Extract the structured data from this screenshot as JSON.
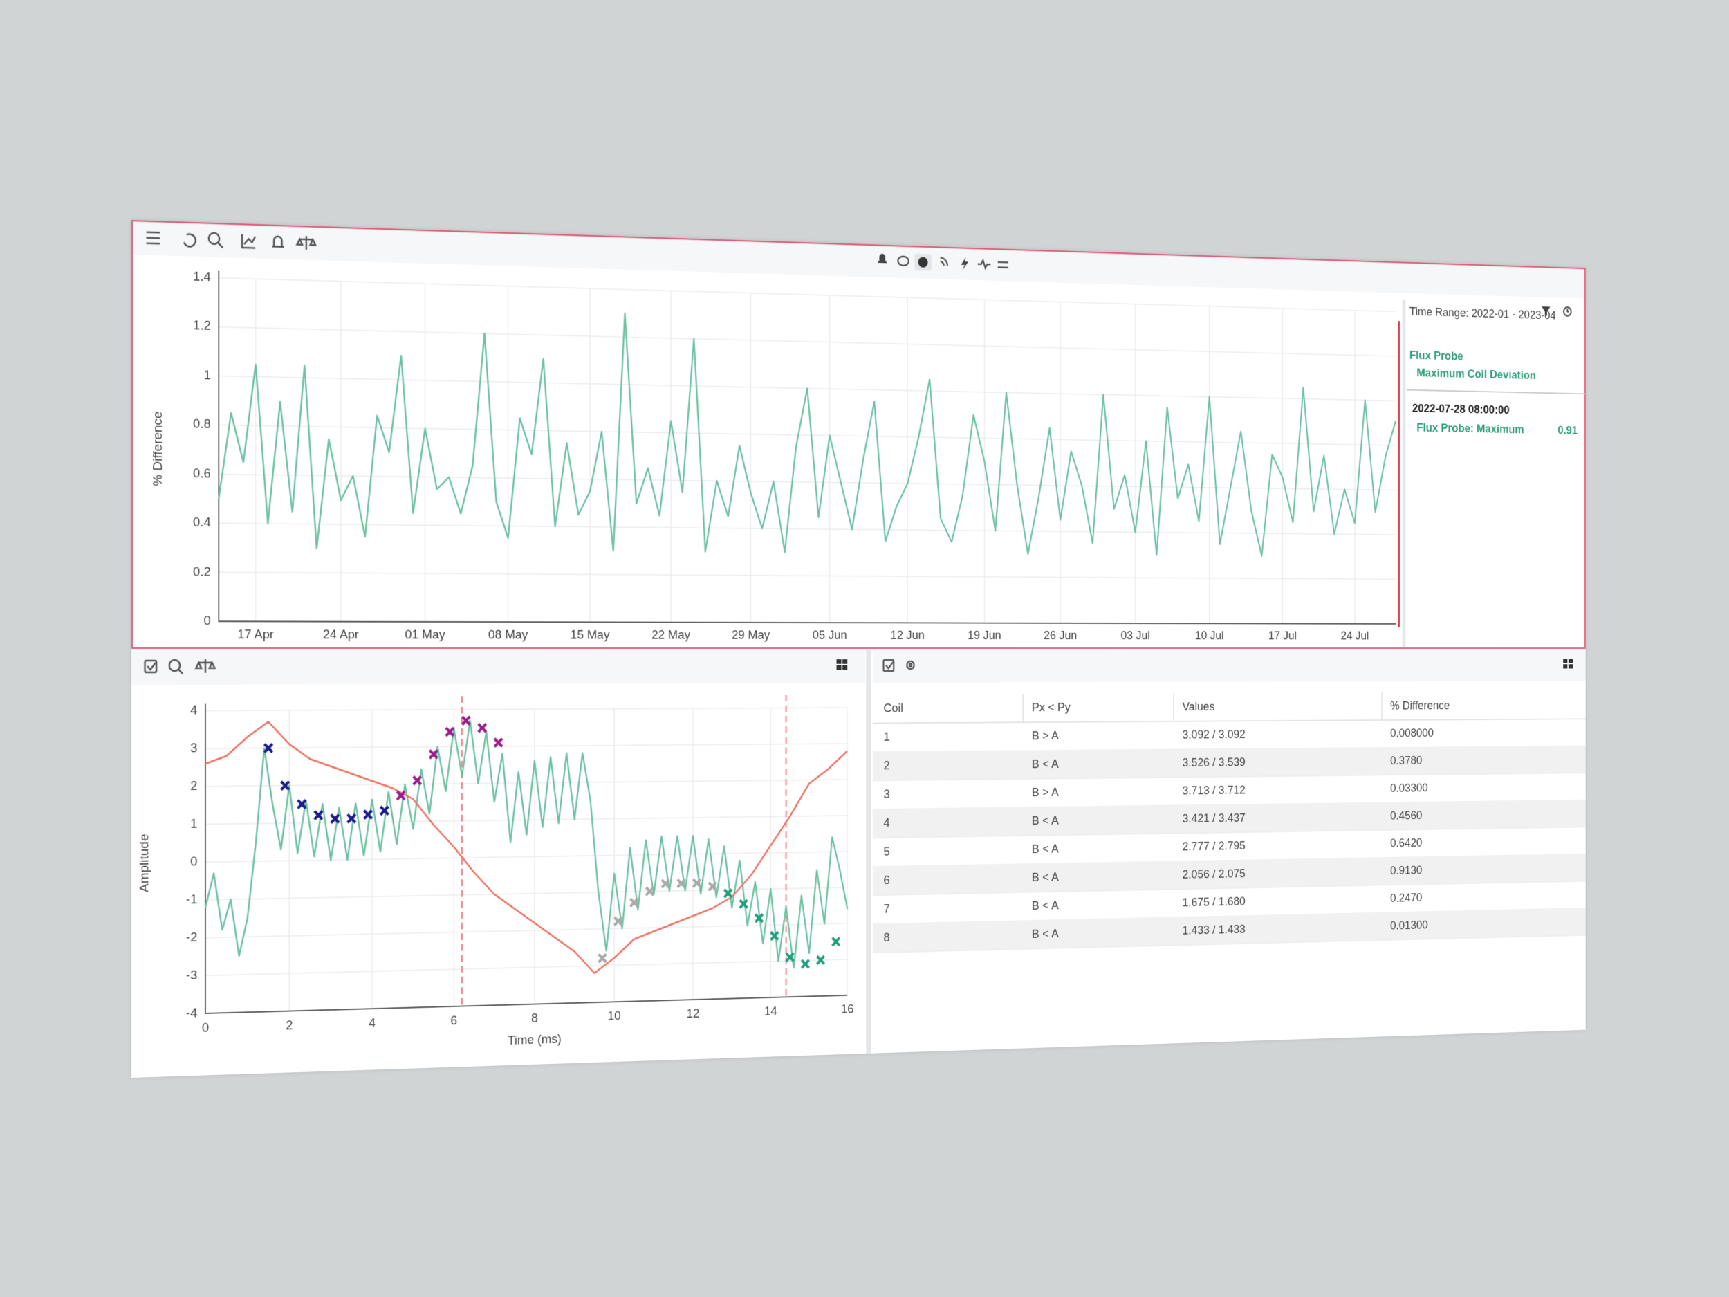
{
  "legend": {
    "time_range": "Time Range: 2022-01 - 2023-04",
    "probe": "Flux Probe",
    "metric": "Maximum Coil Deviation",
    "timestamp": "2022-07-28 08:00:00",
    "reading_label": "Flux Probe: Maximum",
    "reading_value": 0.91
  },
  "chart_data": [
    {
      "type": "line",
      "ylabel": "% Difference",
      "grid": true,
      "xlim": [
        "2022-04-14",
        "2022-07-28"
      ],
      "xticks": [
        {
          "value": "2022-04-17",
          "label": "17 Apr"
        },
        {
          "value": "2022-04-24",
          "label": "24 Apr"
        },
        {
          "value": "2022-05-01",
          "label": "01 May"
        },
        {
          "value": "2022-05-08",
          "label": "08 May"
        },
        {
          "value": "2022-05-15",
          "label": "15 May"
        },
        {
          "value": "2022-05-22",
          "label": "22 May"
        },
        {
          "value": "2022-05-29",
          "label": "29 May"
        },
        {
          "value": "2022-06-05",
          "label": "05 Jun"
        },
        {
          "value": "2022-06-12",
          "label": "12 Jun"
        },
        {
          "value": "2022-06-19",
          "label": "19 Jun"
        },
        {
          "value": "2022-06-26",
          "label": "26 Jun"
        },
        {
          "value": "2022-07-03",
          "label": "03 Jul"
        },
        {
          "value": "2022-07-10",
          "label": "10 Jul"
        },
        {
          "value": "2022-07-17",
          "label": "17 Jul"
        },
        {
          "value": "2022-07-24",
          "label": "24 Jul"
        }
      ],
      "ylim": [
        0,
        1.4
      ],
      "yticks": [
        0,
        0.2,
        0.4,
        0.6,
        0.8,
        1,
        1.2,
        1.4
      ],
      "series": [
        {
          "color": "#6cc2a0",
          "x": [
            "2022-04-14",
            "2022-04-15",
            "2022-04-16",
            "2022-04-17",
            "2022-04-18",
            "2022-04-19",
            "2022-04-20",
            "2022-04-21",
            "2022-04-22",
            "2022-04-23",
            "2022-04-24",
            "2022-04-25",
            "2022-04-26",
            "2022-04-27",
            "2022-04-28",
            "2022-04-29",
            "2022-04-30",
            "2022-05-01",
            "2022-05-02",
            "2022-05-03",
            "2022-05-04",
            "2022-05-05",
            "2022-05-06",
            "2022-05-07",
            "2022-05-08",
            "2022-05-09",
            "2022-05-10",
            "2022-05-11",
            "2022-05-12",
            "2022-05-13",
            "2022-05-14",
            "2022-05-15",
            "2022-05-16",
            "2022-05-17",
            "2022-05-18",
            "2022-05-19",
            "2022-05-20",
            "2022-05-21",
            "2022-05-22",
            "2022-05-23",
            "2022-05-24",
            "2022-05-25",
            "2022-05-26",
            "2022-05-27",
            "2022-05-28",
            "2022-05-29",
            "2022-05-30",
            "2022-05-31",
            "2022-06-01",
            "2022-06-02",
            "2022-06-03",
            "2022-06-04",
            "2022-06-05",
            "2022-06-06",
            "2022-06-07",
            "2022-06-08",
            "2022-06-09",
            "2022-06-10",
            "2022-06-11",
            "2022-06-12",
            "2022-06-13",
            "2022-06-14",
            "2022-06-15",
            "2022-06-16",
            "2022-06-17",
            "2022-06-18",
            "2022-06-19",
            "2022-06-20",
            "2022-06-21",
            "2022-06-22",
            "2022-06-23",
            "2022-06-24",
            "2022-06-25",
            "2022-06-26",
            "2022-06-27",
            "2022-06-28",
            "2022-06-29",
            "2022-06-30",
            "2022-07-01",
            "2022-07-02",
            "2022-07-03",
            "2022-07-04",
            "2022-07-05",
            "2022-07-06",
            "2022-07-07",
            "2022-07-08",
            "2022-07-09",
            "2022-07-10",
            "2022-07-11",
            "2022-07-12",
            "2022-07-13",
            "2022-07-14",
            "2022-07-15",
            "2022-07-16",
            "2022-07-17",
            "2022-07-18",
            "2022-07-19",
            "2022-07-20",
            "2022-07-21",
            "2022-07-22",
            "2022-07-23",
            "2022-07-24",
            "2022-07-25",
            "2022-07-26",
            "2022-07-27",
            "2022-07-28"
          ],
          "values": [
            0.5,
            0.85,
            0.65,
            1.05,
            0.4,
            0.9,
            0.45,
            1.05,
            0.3,
            0.75,
            0.5,
            0.6,
            0.35,
            0.85,
            0.7,
            1.1,
            0.45,
            0.8,
            0.55,
            0.6,
            0.45,
            0.65,
            1.2,
            0.5,
            0.35,
            0.85,
            0.7,
            1.1,
            0.4,
            0.75,
            0.45,
            0.55,
            0.8,
            0.3,
            1.3,
            0.5,
            0.65,
            0.45,
            0.85,
            0.55,
            1.2,
            0.3,
            0.6,
            0.45,
            0.75,
            0.55,
            0.4,
            0.6,
            0.3,
            0.75,
            1.0,
            0.45,
            0.8,
            0.6,
            0.4,
            0.7,
            0.95,
            0.35,
            0.5,
            0.6,
            0.8,
            1.05,
            0.45,
            0.35,
            0.55,
            0.9,
            0.7,
            0.4,
            1.0,
            0.6,
            0.3,
            0.55,
            0.85,
            0.45,
            0.75,
            0.6,
            0.35,
            1.0,
            0.5,
            0.65,
            0.4,
            0.8,
            0.3,
            0.95,
            0.55,
            0.7,
            0.45,
            1.0,
            0.35,
            0.6,
            0.85,
            0.5,
            0.3,
            0.75,
            0.65,
            0.45,
            1.05,
            0.5,
            0.75,
            0.4,
            0.6,
            0.45,
            1.0,
            0.5,
            0.75,
            0.91
          ]
        }
      ]
    },
    {
      "type": "line",
      "xlabel": "Time (ms)",
      "ylabel": "Amplitude",
      "grid": true,
      "xlim": [
        0,
        16
      ],
      "xticks": [
        0,
        2,
        4,
        6,
        8,
        10,
        12,
        14,
        16
      ],
      "ylim": [
        -4,
        4
      ],
      "yticks": [
        -4,
        -3,
        -2,
        -1,
        0,
        1,
        2,
        3,
        4
      ],
      "series": [
        {
          "color": "#6cc2a0",
          "x": [
            0,
            0.2,
            0.4,
            0.6,
            0.8,
            1,
            1.2,
            1.4,
            1.6,
            1.8,
            2,
            2.2,
            2.4,
            2.6,
            2.8,
            3,
            3.2,
            3.4,
            3.6,
            3.8,
            4,
            4.2,
            4.4,
            4.6,
            4.8,
            5,
            5.2,
            5.4,
            5.6,
            5.8,
            6,
            6.2,
            6.4,
            6.6,
            6.8,
            7,
            7.2,
            7.4,
            7.6,
            7.8,
            8,
            8.2,
            8.4,
            8.6,
            8.8,
            9,
            9.2,
            9.4,
            9.6,
            9.8,
            10,
            10.2,
            10.4,
            10.6,
            10.8,
            11,
            11.2,
            11.4,
            11.6,
            11.8,
            12,
            12.2,
            12.4,
            12.6,
            12.8,
            13,
            13.2,
            13.4,
            13.6,
            13.8,
            14,
            14.2,
            14.4,
            14.6,
            14.8,
            15,
            15.2,
            15.4,
            15.6,
            15.8,
            16
          ],
          "values": [
            -1.2,
            -0.3,
            -1.8,
            -1.0,
            -2.5,
            -1.5,
            0.5,
            3.0,
            1.5,
            0.3,
            2.0,
            0.2,
            1.6,
            0.1,
            1.5,
            0.0,
            1.4,
            0.0,
            1.5,
            0.1,
            1.6,
            0.2,
            1.8,
            0.4,
            2.0,
            0.8,
            2.4,
            1.2,
            3.0,
            1.8,
            3.5,
            2.2,
            3.7,
            2.0,
            3.4,
            1.5,
            2.8,
            0.4,
            2.3,
            0.6,
            2.6,
            0.8,
            2.7,
            0.9,
            2.8,
            1.0,
            2.8,
            1.5,
            -1.0,
            -2.6,
            -0.5,
            -2.0,
            0.2,
            -1.5,
            0.4,
            -1.1,
            0.5,
            -1.0,
            0.5,
            -1.0,
            0.5,
            -1.1,
            0.4,
            -1.2,
            0.2,
            -1.5,
            -0.2,
            -2.0,
            -0.8,
            -2.5,
            -1.0,
            -3.0,
            -1.5,
            -3.2,
            -1.2,
            -2.8,
            -0.5,
            -2.0,
            0.4,
            -0.5,
            -1.6
          ]
        },
        {
          "color": "#f07060",
          "x": [
            0,
            0.5,
            1,
            1.5,
            2,
            2.5,
            3,
            3.5,
            4,
            4.5,
            5,
            5.5,
            6,
            6.5,
            7,
            7.5,
            8,
            8.5,
            9,
            9.5,
            10,
            10.5,
            11,
            11.5,
            12,
            12.5,
            13,
            13.5,
            14,
            14.5,
            15,
            15.5,
            16
          ],
          "values": [
            2.6,
            2.8,
            3.3,
            3.7,
            3.1,
            2.7,
            2.5,
            2.3,
            2.1,
            1.9,
            1.6,
            0.9,
            0.3,
            -0.4,
            -1.0,
            -1.4,
            -1.8,
            -2.2,
            -2.6,
            -3.2,
            -2.8,
            -2.3,
            -2.1,
            -1.9,
            -1.7,
            -1.5,
            -1.2,
            -0.6,
            0.2,
            1.0,
            1.9,
            2.3,
            2.8
          ]
        }
      ],
      "markers": [
        {
          "color": "#1a1a8c",
          "x": [
            1.5,
            1.9,
            2.3,
            2.7,
            3.1,
            3.5,
            3.9,
            4.3
          ],
          "values": [
            3.0,
            2.0,
            1.5,
            1.2,
            1.1,
            1.1,
            1.2,
            1.3
          ]
        },
        {
          "color": "#9b1b8f",
          "x": [
            4.7,
            5.1,
            5.5,
            5.9,
            6.3,
            6.7,
            7.1
          ],
          "values": [
            1.7,
            2.1,
            2.8,
            3.4,
            3.7,
            3.5,
            3.1
          ]
        },
        {
          "color": "#aaaaaa",
          "x": [
            9.7,
            10.1,
            10.5,
            10.9,
            11.3,
            11.7,
            12.1,
            12.5
          ],
          "values": [
            -2.8,
            -1.8,
            -1.3,
            -1.0,
            -0.8,
            -0.8,
            -0.8,
            -0.9
          ]
        },
        {
          "color": "#1e9e7a",
          "x": [
            12.9,
            13.3,
            13.7,
            14.1,
            14.5,
            14.9,
            15.3,
            15.7
          ],
          "values": [
            -1.1,
            -1.4,
            -1.8,
            -2.3,
            -2.9,
            -3.1,
            -3.0,
            -2.5
          ]
        }
      ],
      "vlines": {
        "color": "#f4848a",
        "values": [
          6.2,
          14.4
        ]
      }
    }
  ],
  "table": {
    "columns": [
      "Coil",
      "Px < Py",
      "Values",
      "% Difference"
    ],
    "rows": [
      [
        "1",
        "B > A",
        "3.092 / 3.092",
        "0.008000"
      ],
      [
        "2",
        "B < A",
        "3.526 / 3.539",
        "0.3780"
      ],
      [
        "3",
        "B > A",
        "3.713 / 3.712",
        "0.03300"
      ],
      [
        "4",
        "B < A",
        "3.421 / 3.437",
        "0.4560"
      ],
      [
        "5",
        "B < A",
        "2.777 / 2.795",
        "0.6420"
      ],
      [
        "6",
        "B < A",
        "2.056 / 2.075",
        "0.9130"
      ],
      [
        "7",
        "B < A",
        "1.675 / 1.680",
        "0.2470"
      ],
      [
        "8",
        "B < A",
        "1.433 / 1.433",
        "0.01300"
      ]
    ]
  }
}
